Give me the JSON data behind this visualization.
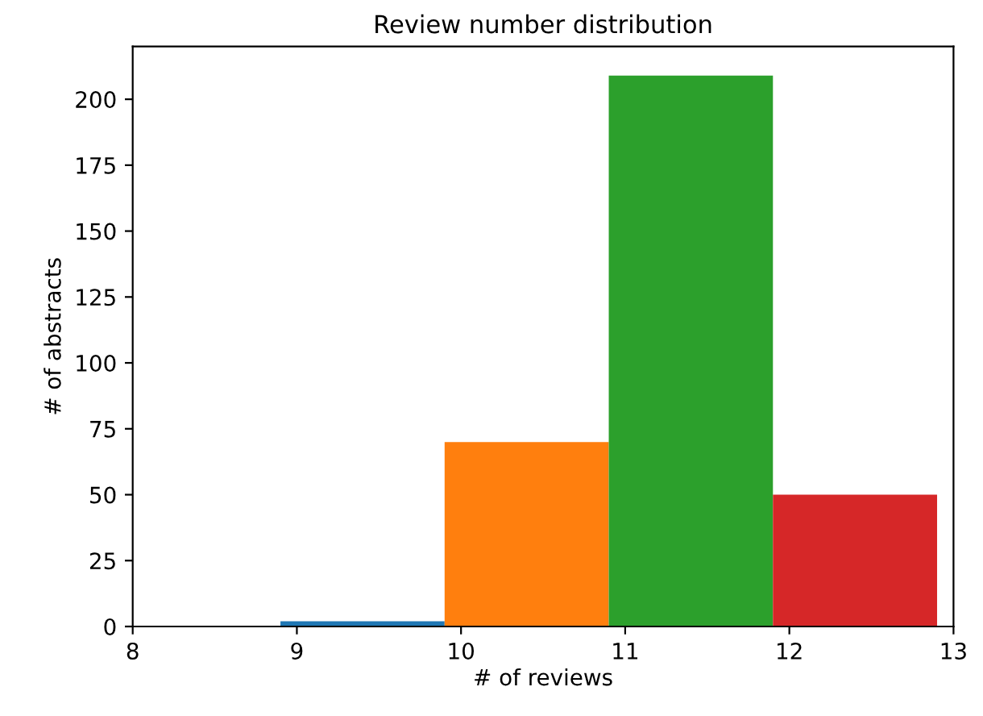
{
  "chart_data": {
    "type": "histogram",
    "title": "Review number distribution",
    "xlabel": "# of reviews",
    "ylabel": "# of abstracts",
    "bins": [
      8.9,
      9.9,
      10.9,
      11.9,
      12.9
    ],
    "values": [
      2,
      70,
      209,
      50
    ],
    "colors": [
      "#1f77b4",
      "#ff7f0e",
      "#2ca02c",
      "#d62728"
    ],
    "xlim": [
      8,
      13
    ],
    "xticks": [
      8,
      9,
      10,
      11,
      12,
      13
    ],
    "ylim": [
      0,
      220
    ],
    "yticks": [
      0,
      25,
      50,
      75,
      100,
      125,
      150,
      175,
      200
    ],
    "grid": false
  }
}
